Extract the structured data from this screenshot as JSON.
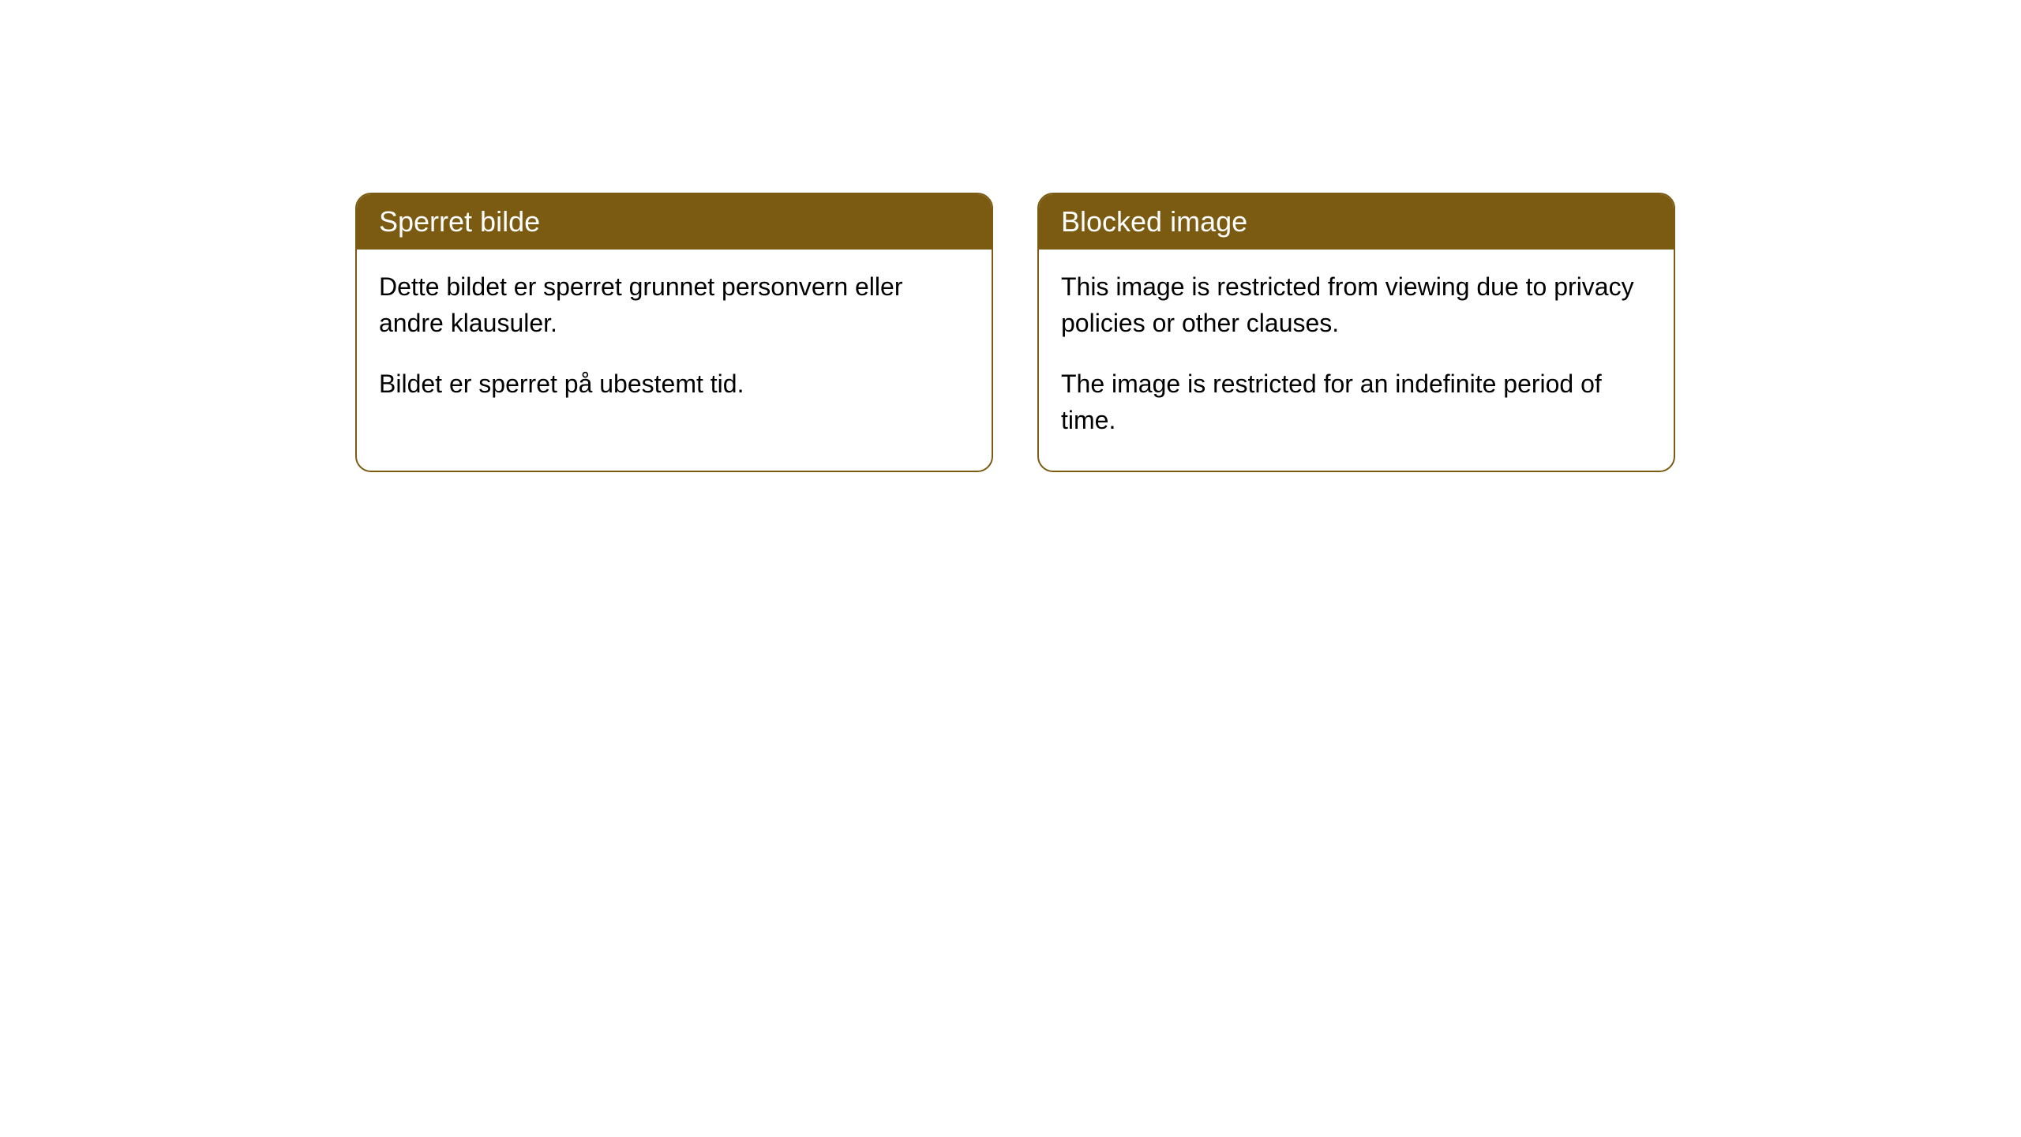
{
  "cards": [
    {
      "title": "Sperret bilde",
      "paragraph1": "Dette bildet er sperret grunnet personvern eller andre klausuler.",
      "paragraph2": "Bildet er sperret på ubestemt tid."
    },
    {
      "title": "Blocked image",
      "paragraph1": "This image is restricted from viewing due to privacy policies or other clauses.",
      "paragraph2": "The image is restricted for an indefinite period of time."
    }
  ],
  "style": {
    "header_bg_color": "#7a5b11",
    "header_text_color": "#ffffff",
    "border_color": "#7a5b11",
    "body_bg_color": "#ffffff",
    "body_text_color": "#000000",
    "border_radius": 20,
    "title_fontsize": 36,
    "body_fontsize": 32
  }
}
